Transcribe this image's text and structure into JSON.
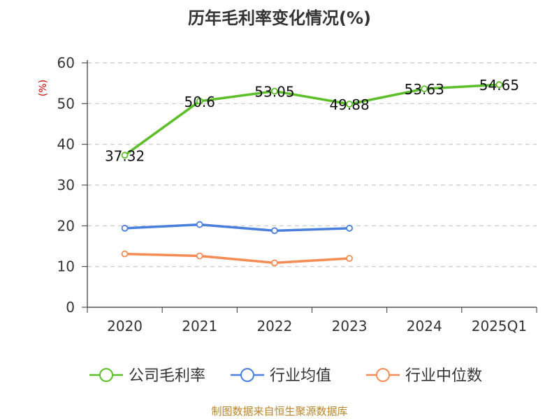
{
  "chart_data": {
    "type": "line",
    "title": "历年毛利率变化情况(%)",
    "ylabel": "(%)",
    "xlabel": "",
    "categories": [
      "2020",
      "2021",
      "2022",
      "2023",
      "2024",
      "2025Q1"
    ],
    "ylim": [
      0,
      60
    ],
    "yticks": [
      0,
      10,
      20,
      30,
      40,
      50,
      60
    ],
    "grid": true,
    "legend_position": "bottom",
    "series": [
      {
        "name": "公司毛利率",
        "color": "#5cbf2a",
        "values": [
          37.32,
          50.6,
          53.05,
          49.88,
          53.63,
          54.65
        ],
        "labels": [
          "37.32",
          "50.6",
          "53.05",
          "49.88",
          "53.63",
          "54.65"
        ],
        "show_labels": true
      },
      {
        "name": "行业均值",
        "color": "#4a7fdc",
        "values": [
          19.4,
          20.3,
          18.8,
          19.4,
          null,
          null
        ],
        "show_labels": false
      },
      {
        "name": "行业中位数",
        "color": "#f48c55",
        "values": [
          13.1,
          12.6,
          10.9,
          12.0,
          null,
          null
        ],
        "show_labels": false
      }
    ]
  },
  "footer": {
    "source": "制图数据来自恒生聚源数据库"
  }
}
